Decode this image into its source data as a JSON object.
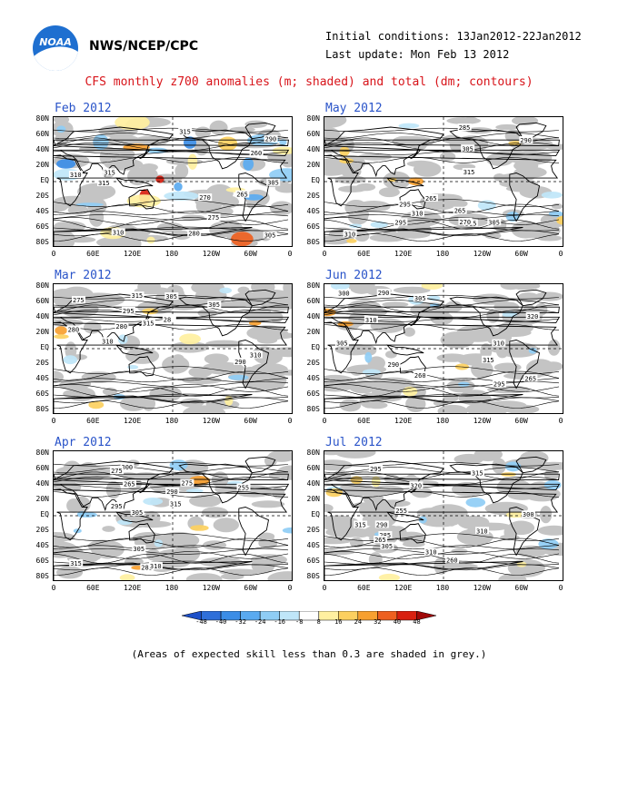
{
  "header": {
    "org": "NWS/NCEP/CPC",
    "logo_text": "NOAA",
    "initial_conditions": "Initial conditions: 13Jan2012-22Jan2012",
    "last_update": "Last update: Mon Feb 13 2012",
    "title": "CFS monthly z700 anomalies (m; shaded) and total (dm; contours)"
  },
  "panels": [
    {
      "title": "Feb 2012",
      "contours": [
        "275",
        "280",
        "290",
        "310",
        "305",
        "315",
        "315",
        "315",
        "310",
        "305",
        "270",
        "260",
        "265"
      ]
    },
    {
      "title": "May 2012",
      "contours": [
        "290",
        "295",
        "305",
        "310",
        "315",
        "310",
        "305",
        "315",
        "285",
        "295",
        "270",
        "265",
        "265"
      ]
    },
    {
      "title": "Mar 2012",
      "contours": [
        "275",
        "280",
        "290",
        "305",
        "310",
        "315",
        "315",
        "310",
        "305",
        "295",
        "280",
        "28"
      ]
    },
    {
      "title": "Jun 2012",
      "contours": [
        "290",
        "295",
        "300",
        "305",
        "310",
        "315",
        "320",
        "310",
        "305",
        "290",
        "265",
        "260"
      ]
    },
    {
      "title": "Apr 2012",
      "contours": [
        "285",
        "290",
        "295",
        "305",
        "310",
        "315",
        "315",
        "305",
        "300",
        "275",
        "275",
        "265",
        "255"
      ]
    },
    {
      "title": "Jul 2012",
      "contours": [
        "260",
        "305",
        "310",
        "315",
        "310",
        "320",
        "315",
        "300",
        "295",
        "290",
        "285",
        "265",
        "255"
      ]
    }
  ],
  "axes": {
    "lat_labels": [
      "80N",
      "60N",
      "40N",
      "20N",
      "EQ",
      "20S",
      "40S",
      "60S",
      "80S"
    ],
    "lon_labels": [
      "0",
      "60E",
      "120E",
      "180",
      "120W",
      "60W",
      "0"
    ]
  },
  "colorbar": {
    "labels": [
      "-48",
      "-40",
      "-32",
      "-24",
      "-16",
      "-8",
      "8",
      "16",
      "24",
      "32",
      "40",
      "48"
    ],
    "colors": [
      "#1e50c8",
      "#2f6fd9",
      "#3b8de6",
      "#5aaaf0",
      "#8fcdf5",
      "#bfe6f9",
      "#ffffff",
      "#fff0a0",
      "#fcd060",
      "#f7a030",
      "#ee6020",
      "#d82010",
      "#a00808"
    ]
  },
  "footer": "(Areas of expected skill less than 0.3 are shaded in grey.)"
}
